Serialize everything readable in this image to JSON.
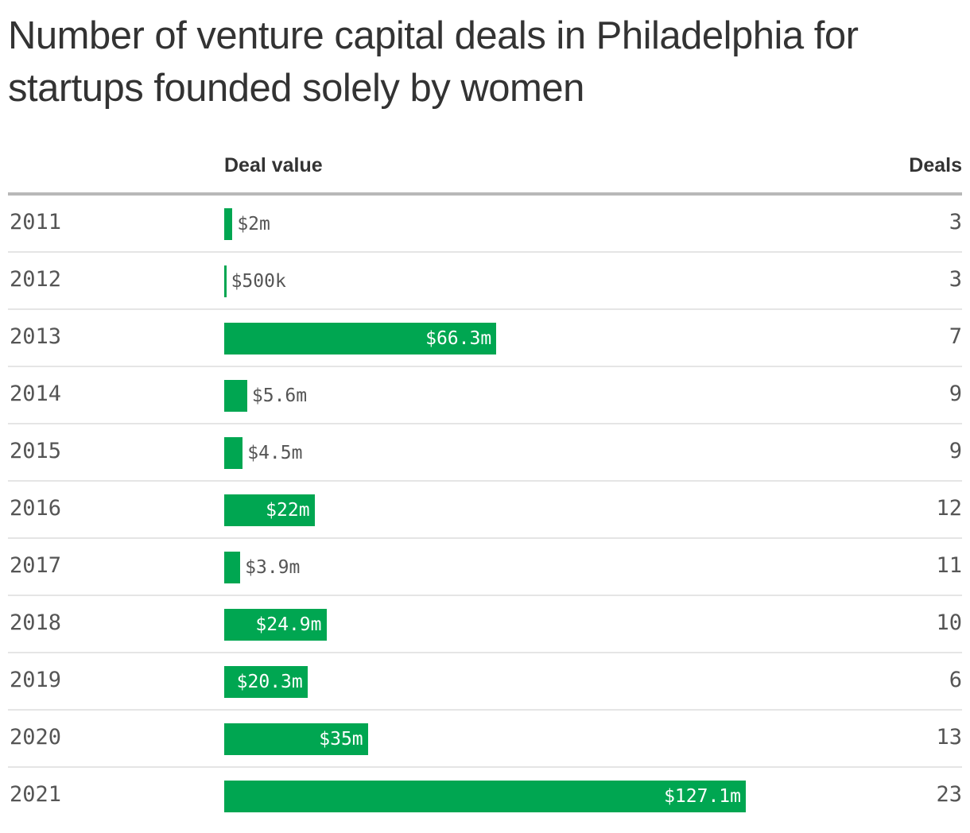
{
  "title": "Number of venture capital deals in Philadelphia for startups founded solely by women",
  "columns": {
    "value": "Deal value",
    "deals": "Deals"
  },
  "colors": {
    "bar": "#00a651",
    "text": "#333333",
    "muted": "#555555",
    "rule": "#b8b8b8",
    "row_divider": "#e5e5e5"
  },
  "chart_data": {
    "type": "bar",
    "orientation": "horizontal",
    "title": "Number of venture capital deals in Philadelphia for startups founded solely by women",
    "categories": [
      "2011",
      "2012",
      "2013",
      "2014",
      "2015",
      "2016",
      "2017",
      "2018",
      "2019",
      "2020",
      "2021"
    ],
    "series": [
      {
        "name": "Deal value",
        "unit": "$m",
        "values": [
          2,
          0.5,
          66.3,
          5.6,
          4.5,
          22,
          3.9,
          24.9,
          20.3,
          35,
          127.1
        ],
        "labels": [
          "$2m",
          "$500k",
          "$66.3m",
          "$5.6m",
          "$4.5m",
          "$22m",
          "$3.9m",
          "$24.9m",
          "$20.3m",
          "$35m",
          "$127.1m"
        ]
      },
      {
        "name": "Deals",
        "values": [
          3,
          3,
          7,
          9,
          9,
          12,
          11,
          10,
          6,
          13,
          23
        ]
      }
    ],
    "xlim": [
      0,
      127.1
    ],
    "grid": false,
    "legend": "none"
  }
}
